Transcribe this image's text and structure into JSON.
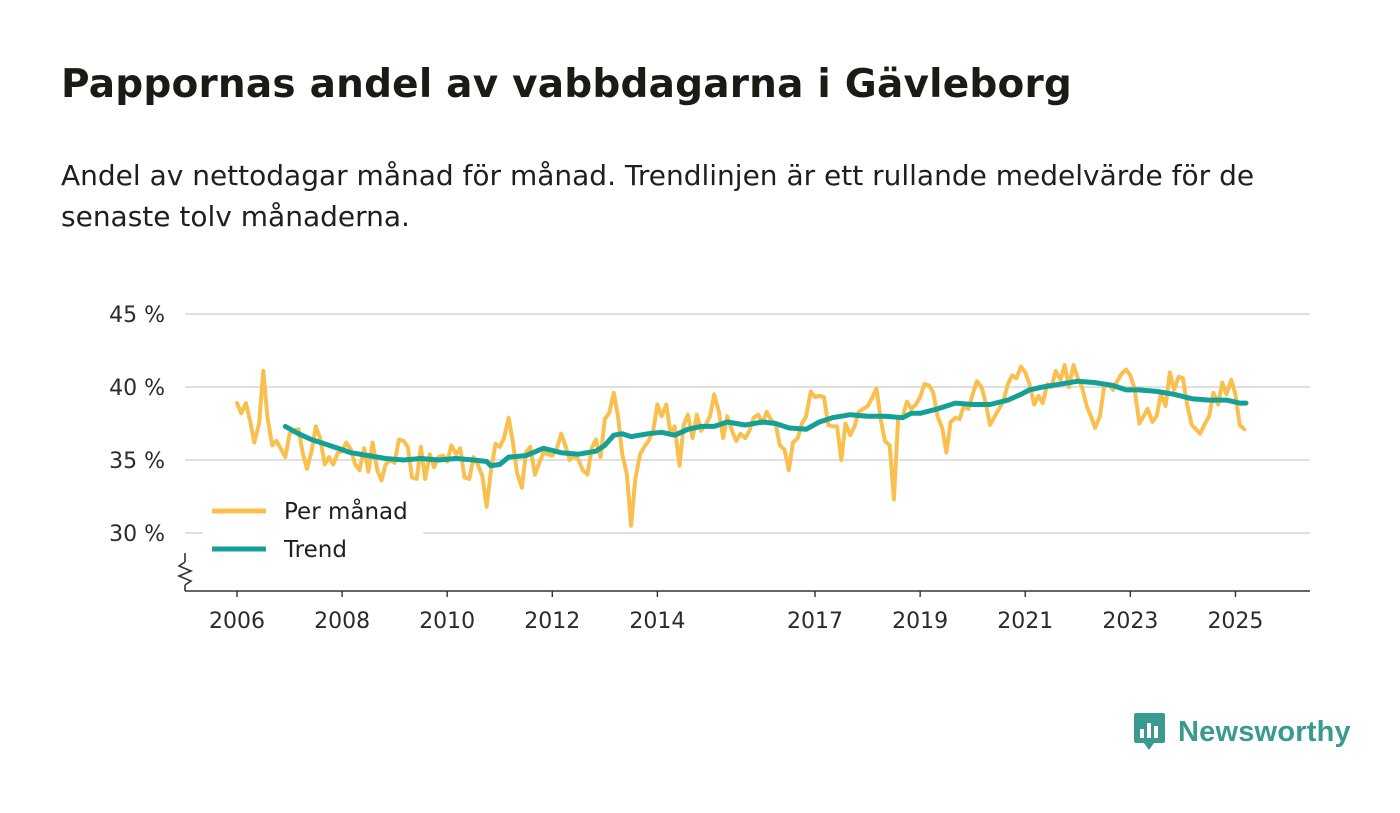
{
  "chart_data": {
    "type": "line",
    "title": "Pappornas andel av vabbdagarna i Gävleborg",
    "subtitle": "Andel av nettodagar månad för månad. Trendlinjen är ett rullande medelvärde för de senaste tolv månaderna.",
    "xlabel": "",
    "ylabel": "",
    "ylim": [
      26,
      46
    ],
    "xlim": [
      2005.0,
      2026.3
    ],
    "y_ticks": [
      30,
      35,
      40,
      45
    ],
    "y_tick_labels": [
      "30 %",
      "35 %",
      "40 %",
      "45 %"
    ],
    "x_ticks": [
      2006,
      2008,
      2010,
      2012,
      2014,
      2017,
      2019,
      2021,
      2023,
      2025
    ],
    "x_tick_labels": [
      "2006",
      "2008",
      "2010",
      "2012",
      "2014",
      "2017",
      "2019",
      "2021",
      "2023",
      "2025"
    ],
    "grid": true,
    "legend_position": "bottom-left",
    "series": [
      {
        "name": "Per månad",
        "color": "#f9c04f",
        "points": [
          [
            2006.0,
            38.9
          ],
          [
            2006.08,
            38.2
          ],
          [
            2006.17,
            38.9
          ],
          [
            2006.25,
            37.7
          ],
          [
            2006.33,
            36.2
          ],
          [
            2006.42,
            37.5
          ],
          [
            2006.5,
            41.1
          ],
          [
            2006.58,
            37.9
          ],
          [
            2006.67,
            36.0
          ],
          [
            2006.75,
            36.3
          ],
          [
            2006.83,
            35.8
          ],
          [
            2006.92,
            35.2
          ],
          [
            2007.0,
            36.8
          ],
          [
            2007.08,
            37.0
          ],
          [
            2007.17,
            37.1
          ],
          [
            2007.25,
            35.5
          ],
          [
            2007.33,
            34.4
          ],
          [
            2007.42,
            35.6
          ],
          [
            2007.5,
            37.3
          ],
          [
            2007.58,
            36.5
          ],
          [
            2007.67,
            34.7
          ],
          [
            2007.75,
            35.2
          ],
          [
            2007.83,
            34.7
          ],
          [
            2007.92,
            35.5
          ],
          [
            2008.0,
            35.6
          ],
          [
            2008.08,
            36.2
          ],
          [
            2008.17,
            35.7
          ],
          [
            2008.25,
            34.7
          ],
          [
            2008.33,
            34.3
          ],
          [
            2008.42,
            35.8
          ],
          [
            2008.5,
            34.2
          ],
          [
            2008.58,
            36.2
          ],
          [
            2008.67,
            34.3
          ],
          [
            2008.75,
            33.6
          ],
          [
            2008.83,
            34.7
          ],
          [
            2008.92,
            35.0
          ],
          [
            2009.0,
            34.8
          ],
          [
            2009.08,
            36.4
          ],
          [
            2009.17,
            36.3
          ],
          [
            2009.25,
            35.9
          ],
          [
            2009.33,
            33.8
          ],
          [
            2009.42,
            33.7
          ],
          [
            2009.5,
            35.9
          ],
          [
            2009.58,
            33.7
          ],
          [
            2009.67,
            35.4
          ],
          [
            2009.75,
            34.5
          ],
          [
            2009.83,
            35.2
          ],
          [
            2009.92,
            35.3
          ],
          [
            2010.0,
            34.9
          ],
          [
            2010.08,
            36.0
          ],
          [
            2010.17,
            35.4
          ],
          [
            2010.25,
            35.8
          ],
          [
            2010.33,
            33.8
          ],
          [
            2010.42,
            33.7
          ],
          [
            2010.5,
            35.2
          ],
          [
            2010.58,
            34.7
          ],
          [
            2010.67,
            33.9
          ],
          [
            2010.75,
            31.8
          ],
          [
            2010.83,
            34.2
          ],
          [
            2010.92,
            36.1
          ],
          [
            2011.0,
            35.9
          ],
          [
            2011.08,
            36.5
          ],
          [
            2011.17,
            37.9
          ],
          [
            2011.25,
            36.2
          ],
          [
            2011.33,
            34.1
          ],
          [
            2011.42,
            33.1
          ],
          [
            2011.5,
            35.5
          ],
          [
            2011.58,
            35.9
          ],
          [
            2011.67,
            34.0
          ],
          [
            2011.75,
            34.8
          ],
          [
            2011.83,
            35.5
          ],
          [
            2011.92,
            35.4
          ],
          [
            2012.0,
            35.3
          ],
          [
            2012.08,
            35.7
          ],
          [
            2012.17,
            36.8
          ],
          [
            2012.25,
            36.0
          ],
          [
            2012.33,
            35.0
          ],
          [
            2012.42,
            35.3
          ],
          [
            2012.5,
            35.0
          ],
          [
            2012.58,
            34.3
          ],
          [
            2012.67,
            34.0
          ],
          [
            2012.75,
            35.8
          ],
          [
            2012.83,
            36.4
          ],
          [
            2012.92,
            35.2
          ],
          [
            2013.0,
            37.8
          ],
          [
            2013.08,
            38.2
          ],
          [
            2013.17,
            39.6
          ],
          [
            2013.25,
            38.0
          ],
          [
            2013.33,
            35.4
          ],
          [
            2013.42,
            34.0
          ],
          [
            2013.5,
            30.5
          ],
          [
            2013.58,
            33.7
          ],
          [
            2013.67,
            35.4
          ],
          [
            2013.75,
            35.9
          ],
          [
            2013.83,
            36.3
          ],
          [
            2013.92,
            37.0
          ],
          [
            2014.0,
            38.8
          ],
          [
            2014.08,
            38.0
          ],
          [
            2014.17,
            38.8
          ],
          [
            2014.25,
            36.8
          ],
          [
            2014.33,
            37.3
          ],
          [
            2014.42,
            34.6
          ],
          [
            2014.5,
            37.4
          ],
          [
            2014.58,
            38.1
          ],
          [
            2014.67,
            36.5
          ],
          [
            2014.75,
            38.1
          ],
          [
            2014.83,
            37.0
          ],
          [
            2014.92,
            37.4
          ],
          [
            2015.0,
            38.0
          ],
          [
            2015.08,
            39.5
          ],
          [
            2015.17,
            38.3
          ],
          [
            2015.25,
            36.5
          ],
          [
            2015.33,
            38.0
          ],
          [
            2015.42,
            37.0
          ],
          [
            2015.5,
            36.3
          ],
          [
            2015.58,
            36.8
          ],
          [
            2015.67,
            36.5
          ],
          [
            2015.75,
            37.0
          ],
          [
            2015.83,
            37.9
          ],
          [
            2015.92,
            38.1
          ],
          [
            2016.0,
            37.5
          ],
          [
            2016.08,
            38.3
          ],
          [
            2016.17,
            37.7
          ],
          [
            2016.25,
            37.5
          ],
          [
            2016.33,
            36.0
          ],
          [
            2016.42,
            35.7
          ],
          [
            2016.5,
            34.3
          ],
          [
            2016.58,
            36.2
          ],
          [
            2016.67,
            36.5
          ],
          [
            2016.75,
            37.5
          ],
          [
            2016.83,
            38.0
          ],
          [
            2016.92,
            39.7
          ],
          [
            2017.0,
            39.3
          ],
          [
            2017.08,
            39.4
          ],
          [
            2017.17,
            39.3
          ],
          [
            2017.25,
            37.4
          ],
          [
            2017.33,
            37.3
          ],
          [
            2017.42,
            37.3
          ],
          [
            2017.5,
            35.0
          ],
          [
            2017.58,
            37.5
          ],
          [
            2017.67,
            36.7
          ],
          [
            2017.75,
            37.3
          ],
          [
            2017.83,
            38.3
          ],
          [
            2017.92,
            38.5
          ],
          [
            2018.0,
            38.7
          ],
          [
            2018.08,
            39.2
          ],
          [
            2018.17,
            39.9
          ],
          [
            2018.25,
            37.8
          ],
          [
            2018.33,
            36.3
          ],
          [
            2018.42,
            36.0
          ],
          [
            2018.5,
            32.3
          ],
          [
            2018.58,
            37.8
          ],
          [
            2018.67,
            38.0
          ],
          [
            2018.75,
            39.0
          ],
          [
            2018.83,
            38.5
          ],
          [
            2018.92,
            38.8
          ],
          [
            2019.0,
            39.3
          ],
          [
            2019.08,
            40.2
          ],
          [
            2019.17,
            40.1
          ],
          [
            2019.25,
            39.6
          ],
          [
            2019.33,
            38.0
          ],
          [
            2019.42,
            37.2
          ],
          [
            2019.5,
            35.5
          ],
          [
            2019.58,
            37.6
          ],
          [
            2019.67,
            37.9
          ],
          [
            2019.75,
            37.8
          ],
          [
            2019.83,
            38.7
          ],
          [
            2019.92,
            38.5
          ],
          [
            2020.0,
            39.5
          ],
          [
            2020.08,
            40.4
          ],
          [
            2020.17,
            40.0
          ],
          [
            2020.25,
            38.9
          ],
          [
            2020.33,
            37.4
          ],
          [
            2020.42,
            38.0
          ],
          [
            2020.5,
            38.5
          ],
          [
            2020.58,
            39.0
          ],
          [
            2020.67,
            40.2
          ],
          [
            2020.75,
            40.8
          ],
          [
            2020.83,
            40.6
          ],
          [
            2020.92,
            41.4
          ],
          [
            2021.0,
            41.0
          ],
          [
            2021.08,
            40.2
          ],
          [
            2021.17,
            38.8
          ],
          [
            2021.25,
            39.4
          ],
          [
            2021.33,
            38.9
          ],
          [
            2021.42,
            40.2
          ],
          [
            2021.5,
            40.0
          ],
          [
            2021.58,
            41.1
          ],
          [
            2021.67,
            40.5
          ],
          [
            2021.75,
            41.5
          ],
          [
            2021.83,
            40.0
          ],
          [
            2021.92,
            41.5
          ],
          [
            2022.0,
            40.6
          ],
          [
            2022.08,
            40.0
          ],
          [
            2022.17,
            38.7
          ],
          [
            2022.25,
            38.0
          ],
          [
            2022.33,
            37.2
          ],
          [
            2022.42,
            38.0
          ],
          [
            2022.5,
            40.0
          ],
          [
            2022.58,
            40.2
          ],
          [
            2022.67,
            39.8
          ],
          [
            2022.75,
            40.4
          ],
          [
            2022.83,
            40.9
          ],
          [
            2022.92,
            41.2
          ],
          [
            2023.0,
            40.8
          ],
          [
            2023.08,
            39.9
          ],
          [
            2023.17,
            37.5
          ],
          [
            2023.25,
            38.0
          ],
          [
            2023.33,
            38.5
          ],
          [
            2023.42,
            37.6
          ],
          [
            2023.5,
            38.0
          ],
          [
            2023.58,
            39.5
          ],
          [
            2023.67,
            38.7
          ],
          [
            2023.75,
            41.0
          ],
          [
            2023.83,
            39.8
          ],
          [
            2023.92,
            40.7
          ],
          [
            2024.0,
            40.6
          ],
          [
            2024.08,
            38.8
          ],
          [
            2024.17,
            37.4
          ],
          [
            2024.25,
            37.1
          ],
          [
            2024.33,
            36.8
          ],
          [
            2024.42,
            37.5
          ],
          [
            2024.5,
            38.0
          ],
          [
            2024.58,
            39.6
          ],
          [
            2024.67,
            38.8
          ],
          [
            2024.75,
            40.3
          ],
          [
            2024.83,
            39.5
          ],
          [
            2024.92,
            40.5
          ],
          [
            2025.0,
            39.5
          ],
          [
            2025.08,
            37.4
          ],
          [
            2025.17,
            37.1
          ]
        ]
      },
      {
        "name": "Trend",
        "color": "#14a096",
        "points": [
          [
            2006.92,
            37.3
          ],
          [
            2007.17,
            36.8
          ],
          [
            2007.42,
            36.4
          ],
          [
            2007.67,
            36.1
          ],
          [
            2007.92,
            35.8
          ],
          [
            2008.17,
            35.5
          ],
          [
            2008.5,
            35.3
          ],
          [
            2008.83,
            35.1
          ],
          [
            2009.17,
            35.0
          ],
          [
            2009.5,
            35.1
          ],
          [
            2009.83,
            35.0
          ],
          [
            2010.17,
            35.1
          ],
          [
            2010.5,
            35.0
          ],
          [
            2010.75,
            34.9
          ],
          [
            2010.83,
            34.6
          ],
          [
            2011.0,
            34.7
          ],
          [
            2011.17,
            35.2
          ],
          [
            2011.5,
            35.3
          ],
          [
            2011.83,
            35.8
          ],
          [
            2012.17,
            35.5
          ],
          [
            2012.5,
            35.4
          ],
          [
            2012.83,
            35.6
          ],
          [
            2013.0,
            36.0
          ],
          [
            2013.17,
            36.7
          ],
          [
            2013.33,
            36.8
          ],
          [
            2013.5,
            36.6
          ],
          [
            2013.83,
            36.8
          ],
          [
            2014.08,
            36.9
          ],
          [
            2014.33,
            36.7
          ],
          [
            2014.58,
            37.1
          ],
          [
            2014.83,
            37.3
          ],
          [
            2015.08,
            37.3
          ],
          [
            2015.33,
            37.6
          ],
          [
            2015.67,
            37.4
          ],
          [
            2016.0,
            37.6
          ],
          [
            2016.25,
            37.5
          ],
          [
            2016.5,
            37.2
          ],
          [
            2016.83,
            37.1
          ],
          [
            2017.08,
            37.6
          ],
          [
            2017.33,
            37.9
          ],
          [
            2017.67,
            38.1
          ],
          [
            2018.0,
            38.0
          ],
          [
            2018.33,
            38.0
          ],
          [
            2018.67,
            37.9
          ],
          [
            2018.83,
            38.2
          ],
          [
            2019.0,
            38.2
          ],
          [
            2019.33,
            38.5
          ],
          [
            2019.67,
            38.9
          ],
          [
            2020.0,
            38.8
          ],
          [
            2020.33,
            38.8
          ],
          [
            2020.67,
            39.1
          ],
          [
            2020.92,
            39.5
          ],
          [
            2021.08,
            39.8
          ],
          [
            2021.33,
            40.0
          ],
          [
            2021.67,
            40.2
          ],
          [
            2022.0,
            40.4
          ],
          [
            2022.33,
            40.3
          ],
          [
            2022.67,
            40.1
          ],
          [
            2022.92,
            39.8
          ],
          [
            2023.17,
            39.8
          ],
          [
            2023.5,
            39.7
          ],
          [
            2023.83,
            39.5
          ],
          [
            2024.17,
            39.2
          ],
          [
            2024.5,
            39.1
          ],
          [
            2024.83,
            39.1
          ],
          [
            2025.08,
            38.9
          ],
          [
            2025.2,
            38.9
          ]
        ]
      }
    ]
  },
  "brand": {
    "name": "Newsworthy",
    "icon": "newsworthy-logo-icon",
    "color": "#3a9a90"
  }
}
